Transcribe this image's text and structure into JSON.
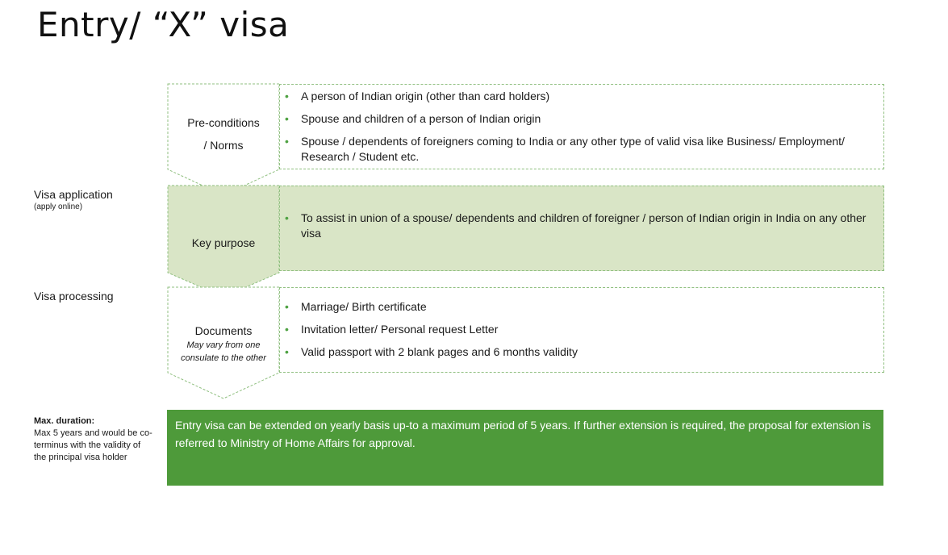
{
  "title": "Entry/ “X” visa",
  "side_labels": {
    "visa_application": "Visa application",
    "visa_application_sub": "(apply online)",
    "visa_processing": "Visa processing",
    "max_duration_head": "Max. duration:",
    "max_duration_text": "Max 5 years and would be co-terminus with the validity of the principal visa holder"
  },
  "rows": {
    "preconditions": {
      "label_line1": "Pre-conditions",
      "label_line2": "/  Norms",
      "items": [
        "A person of Indian origin (other than card holders)",
        "Spouse and children of a person of Indian origin",
        "Spouse /  dependents of foreigners coming to India or any other type of valid visa like Business/ Employment/ Research / Student etc."
      ]
    },
    "key_purpose": {
      "label": "Key purpose",
      "items": [
        "To assist in union of a spouse/ dependents and children of foreigner / person of Indian origin in India on any other visa"
      ]
    },
    "documents": {
      "label": "Documents",
      "note": "May vary from one consulate to the other",
      "items": [
        "Marriage/ Birth certificate",
        "Invitation letter/ Personal request Letter",
        "Valid passport with 2 blank pages and 6 months validity"
      ]
    }
  },
  "banner_text": "Entry visa can be extended on yearly basis up-to a maximum period of 5 years. If further extension is required, the proposal for extension is referred to Ministry of Home Affairs  for approval.",
  "colors": {
    "accent_light": "#d9e5c6",
    "accent_dark": "#4e9a3a",
    "border": "#8fbf7f"
  }
}
